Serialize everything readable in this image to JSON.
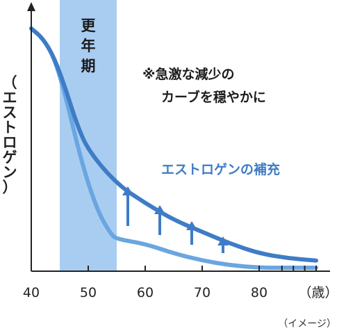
{
  "chart_data": {
    "type": "line",
    "title": "",
    "xlabel": "（歳）",
    "ylabel": "（エストロゲン）",
    "xlim": [
      40,
      90
    ],
    "x_ticks": [
      "40",
      "50",
      "60",
      "70",
      "80"
    ],
    "grid": false,
    "legend": "none",
    "highlight_band": {
      "x_range": [
        45,
        55
      ],
      "label": "更年期",
      "color": "#a9cdf1"
    },
    "series": [
      {
        "name": "エストロゲンの補充",
        "color": "#3f7cc6",
        "x": [
          40,
          42,
          44,
          46,
          48,
          50,
          55,
          60,
          65,
          70,
          75,
          80,
          85,
          90
        ],
        "y": [
          100,
          96,
          88,
          75,
          60,
          49,
          35,
          27,
          20,
          15,
          10,
          6,
          4,
          3
        ]
      },
      {
        "name": "",
        "color": "#6aa6e0",
        "x": [
          40,
          42,
          44,
          46,
          48,
          50,
          52,
          54,
          55,
          60,
          65,
          70,
          75,
          80,
          85,
          90
        ],
        "y": [
          100,
          96,
          88,
          72,
          52,
          35,
          22,
          14,
          12,
          10,
          6,
          3,
          1,
          0,
          0,
          0
        ]
      }
    ],
    "annotations": [
      {
        "text": "※急激な減少の",
        "line": 1
      },
      {
        "text": "カーブを穏やかに",
        "line": 2
      }
    ],
    "arrows": {
      "count": 4,
      "color": "#3f7cc6",
      "meaning": "up"
    },
    "note": "（イメージ）"
  },
  "colors": {
    "axis": "#222222",
    "band": "#a9cdf1",
    "dark_line": "#3f7cc6",
    "light_line": "#6aa6e0",
    "series_label": "#3f7cc6"
  }
}
